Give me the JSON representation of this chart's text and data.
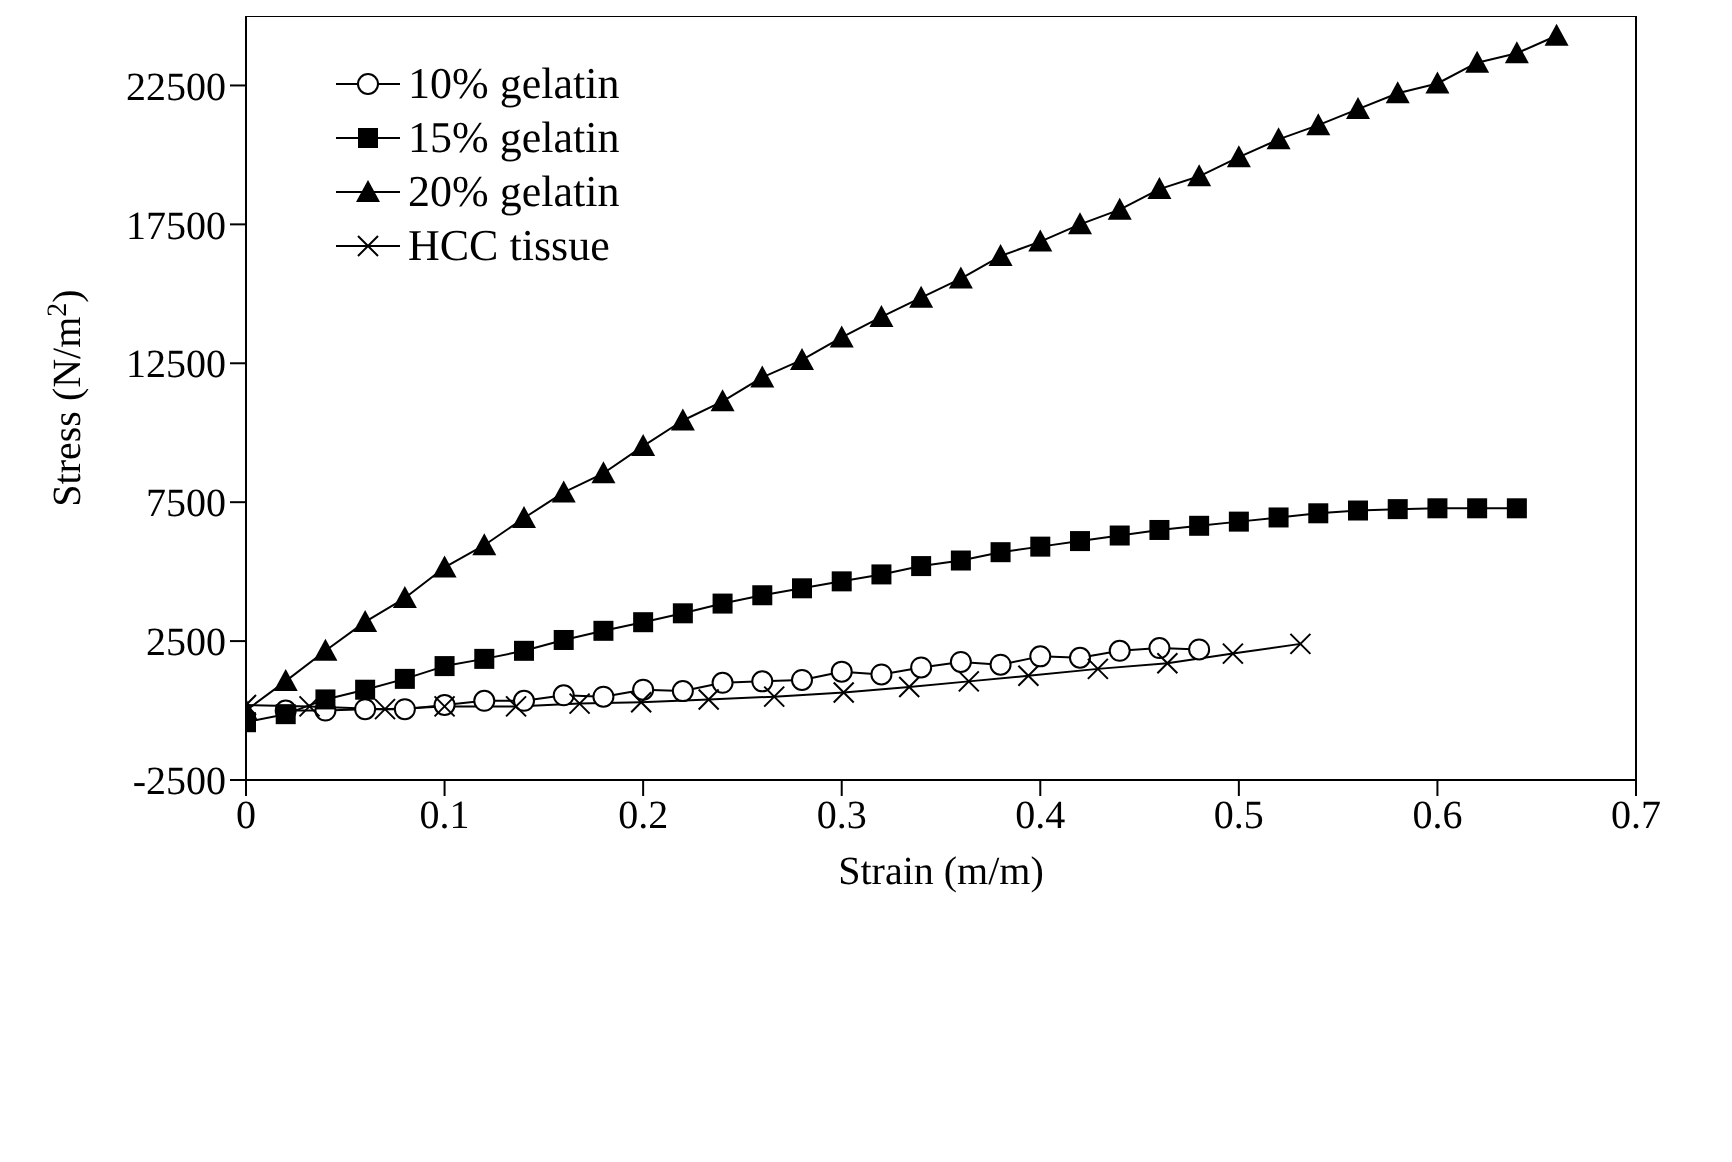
{
  "chart_data": {
    "type": "line",
    "xlabel": "Strain (m/m)",
    "ylabel": "Stress (N/m$^{2}$)",
    "xlim": [
      0,
      0.7
    ],
    "xticks": [
      0,
      0.1,
      0.2,
      0.3,
      0.4,
      0.5,
      0.6,
      0.7
    ],
    "ylim": [
      -2500,
      25000
    ],
    "yticks": [
      -2500,
      2500,
      7500,
      12500,
      17500,
      22500
    ],
    "grid": false,
    "legend": "top left",
    "line_style": "solid",
    "series": [
      {
        "name": "10% gelatin",
        "color": "#000000",
        "marker": "circle",
        "x": [
          0.02,
          0.04,
          0.06,
          0.08,
          0.1,
          0.12,
          0.14,
          0.16,
          0.18,
          0.2,
          0.22,
          0.24,
          0.26,
          0.28,
          0.3,
          0.32,
          0.34,
          0.36,
          0.38,
          0.4,
          0.42,
          0.44,
          0.46,
          0.48
        ],
        "values": [
          0,
          0,
          50,
          50,
          200,
          350,
          350,
          550,
          500,
          750,
          700,
          1000,
          1050,
          1100,
          1400,
          1300,
          1550,
          1750,
          1650,
          1950,
          1900,
          2150,
          2250,
          2200
        ]
      },
      {
        "name": "15% gelatin",
        "color": "#000000",
        "marker": "square",
        "x": [
          0,
          0.02,
          0.04,
          0.06,
          0.08,
          0.1,
          0.12,
          0.14,
          0.16,
          0.18,
          0.2,
          0.22,
          0.24,
          0.26,
          0.28,
          0.3,
          0.32,
          0.34,
          0.36,
          0.38,
          0.4,
          0.42,
          0.44,
          0.46,
          0.48,
          0.5,
          0.52,
          0.54,
          0.56,
          0.58,
          0.6,
          0.62,
          0.64
        ],
        "values": [
          -420,
          -130,
          400,
          750,
          1140,
          1600,
          1860,
          2150,
          2540,
          2870,
          3180,
          3500,
          3850,
          4150,
          4400,
          4650,
          4900,
          5200,
          5400,
          5700,
          5900,
          6100,
          6300,
          6500,
          6650,
          6800,
          6950,
          7100,
          7200,
          7250,
          7280,
          7280,
          7280
        ]
      },
      {
        "name": "20% gelatin",
        "color": "#000000",
        "marker": "triangle",
        "x": [
          0,
          0.02,
          0.04,
          0.06,
          0.08,
          0.1,
          0.12,
          0.14,
          0.16,
          0.18,
          0.2,
          0.22,
          0.24,
          0.26,
          0.28,
          0.3,
          0.32,
          0.34,
          0.36,
          0.38,
          0.4,
          0.42,
          0.44,
          0.46,
          0.48,
          0.5,
          0.52,
          0.54,
          0.56,
          0.58,
          0.6,
          0.62,
          0.64,
          0.66
        ],
        "values": [
          0,
          1060,
          2150,
          3190,
          4050,
          5150,
          5950,
          6930,
          7850,
          8540,
          9520,
          10440,
          11130,
          11990,
          12620,
          13430,
          14170,
          14860,
          15550,
          16360,
          16880,
          17500,
          18030,
          18770,
          19230,
          19920,
          20560,
          21070,
          21650,
          22220,
          22570,
          23320,
          23660,
          24290
        ]
      },
      {
        "name": "HCC tissue",
        "color": "#000000",
        "marker": "cross",
        "x": [
          0,
          0.032,
          0.07,
          0.1,
          0.136,
          0.168,
          0.199,
          0.233,
          0.266,
          0.301,
          0.334,
          0.364,
          0.394,
          0.429,
          0.464,
          0.497,
          0.531
        ],
        "values": [
          200,
          150,
          50,
          150,
          150,
          250,
          300,
          400,
          500,
          650,
          850,
          1050,
          1250,
          1500,
          1700,
          2050,
          2400
        ]
      }
    ]
  }
}
